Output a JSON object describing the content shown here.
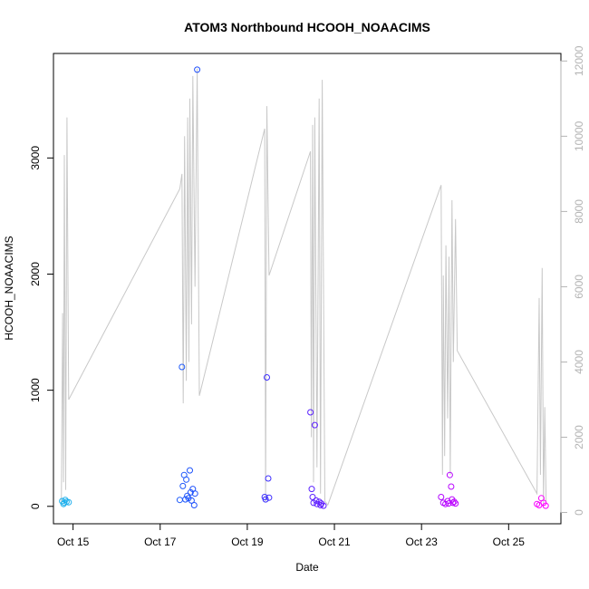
{
  "chart_data": {
    "type": "scatter",
    "title": "ATOM3 Northbound HCOOH_NOAACIMS",
    "xlabel": "Date",
    "ylabel": "HCOOH_NOAACIMS",
    "x_ticks": [
      "Oct 15",
      "Oct 17",
      "Oct 19",
      "Oct 21",
      "Oct 23",
      "Oct 25"
    ],
    "x_tick_values": [
      15,
      17,
      19,
      21,
      23,
      25
    ],
    "xlim": [
      14.55,
      26.2
    ],
    "y_ticks": [
      "0",
      "1000",
      "2000",
      "3000"
    ],
    "y_tick_values": [
      0,
      1000,
      2000,
      3000
    ],
    "ylim": [
      -150,
      3900
    ],
    "y2_ticks": [
      "0",
      "2000",
      "4000",
      "6000",
      "8000",
      "10000",
      "12000"
    ],
    "y2_tick_values": [
      0,
      2000,
      4000,
      6000,
      8000,
      10000,
      12000
    ],
    "y2lim": [
      -300,
      12200
    ],
    "colors": {
      "line": "#c8c8c8",
      "right_axis": "#b3b3b3",
      "gradient": [
        "#1fb4ec",
        "#1f3cff",
        "#8a0aff",
        "#ff00ff"
      ]
    },
    "series": [
      {
        "values_role": "scatter",
        "axis": "left",
        "points": [
          [
            14.75,
            45
          ],
          [
            14.8,
            30
          ],
          [
            14.85,
            40
          ],
          [
            14.78,
            20
          ],
          [
            14.9,
            35
          ],
          [
            14.82,
            55
          ],
          [
            17.45,
            55
          ],
          [
            17.5,
            1200
          ],
          [
            17.52,
            175
          ],
          [
            17.55,
            270
          ],
          [
            17.58,
            60
          ],
          [
            17.6,
            230
          ],
          [
            17.62,
            90
          ],
          [
            17.65,
            70
          ],
          [
            17.68,
            310
          ],
          [
            17.7,
            120
          ],
          [
            17.72,
            50
          ],
          [
            17.75,
            150
          ],
          [
            17.78,
            10
          ],
          [
            17.8,
            110
          ],
          [
            17.85,
            3760
          ],
          [
            19.4,
            80
          ],
          [
            19.42,
            60
          ],
          [
            19.45,
            1110
          ],
          [
            19.48,
            240
          ],
          [
            19.5,
            75
          ],
          [
            20.45,
            810
          ],
          [
            20.48,
            150
          ],
          [
            20.5,
            80
          ],
          [
            20.52,
            30
          ],
          [
            20.55,
            700
          ],
          [
            20.58,
            50
          ],
          [
            20.6,
            20
          ],
          [
            20.65,
            40
          ],
          [
            20.68,
            10
          ],
          [
            20.7,
            25
          ],
          [
            20.75,
            5
          ],
          [
            23.45,
            80
          ],
          [
            23.5,
            30
          ],
          [
            23.55,
            20
          ],
          [
            23.6,
            45
          ],
          [
            23.62,
            25
          ],
          [
            23.65,
            270
          ],
          [
            23.68,
            170
          ],
          [
            23.7,
            60
          ],
          [
            23.72,
            30
          ],
          [
            23.75,
            40
          ],
          [
            23.78,
            25
          ],
          [
            25.65,
            20
          ],
          [
            25.7,
            10
          ],
          [
            25.75,
            70
          ],
          [
            25.8,
            30
          ],
          [
            25.85,
            5
          ]
        ]
      },
      {
        "values_role": "line",
        "axis": "right",
        "points": [
          [
            14.73,
            200
          ],
          [
            14.76,
            5300
          ],
          [
            14.78,
            800
          ],
          [
            14.8,
            9500
          ],
          [
            14.83,
            600
          ],
          [
            14.86,
            10500
          ],
          [
            14.9,
            3000
          ],
          [
            17.45,
            8600
          ],
          [
            17.5,
            9000
          ],
          [
            17.53,
            2900
          ],
          [
            17.56,
            10000
          ],
          [
            17.6,
            3500
          ],
          [
            17.63,
            10500
          ],
          [
            17.66,
            4000
          ],
          [
            17.68,
            11000
          ],
          [
            17.72,
            5000
          ],
          [
            17.75,
            11600
          ],
          [
            17.8,
            6000
          ],
          [
            17.85,
            11800
          ],
          [
            17.9,
            3100
          ],
          [
            19.4,
            10200
          ],
          [
            19.42,
            300
          ],
          [
            19.45,
            10800
          ],
          [
            19.5,
            6300
          ],
          [
            20.45,
            9600
          ],
          [
            20.47,
            2000
          ],
          [
            20.5,
            10300
          ],
          [
            20.52,
            800
          ],
          [
            20.55,
            10500
          ],
          [
            20.6,
            1200
          ],
          [
            20.65,
            11000
          ],
          [
            20.68,
            500
          ],
          [
            20.72,
            11500
          ],
          [
            20.78,
            300
          ],
          [
            20.85,
            200
          ],
          [
            23.45,
            8700
          ],
          [
            23.48,
            1000
          ],
          [
            23.5,
            6300
          ],
          [
            23.53,
            1500
          ],
          [
            23.56,
            7100
          ],
          [
            23.6,
            2500
          ],
          [
            23.63,
            6800
          ],
          [
            23.66,
            1000
          ],
          [
            23.7,
            8300
          ],
          [
            23.73,
            4000
          ],
          [
            23.78,
            7800
          ],
          [
            23.82,
            4300
          ],
          [
            25.65,
            500
          ],
          [
            25.7,
            5700
          ],
          [
            25.73,
            1000
          ],
          [
            25.77,
            6500
          ],
          [
            25.8,
            200
          ],
          [
            25.83,
            2800
          ],
          [
            25.86,
            300
          ]
        ]
      }
    ]
  }
}
